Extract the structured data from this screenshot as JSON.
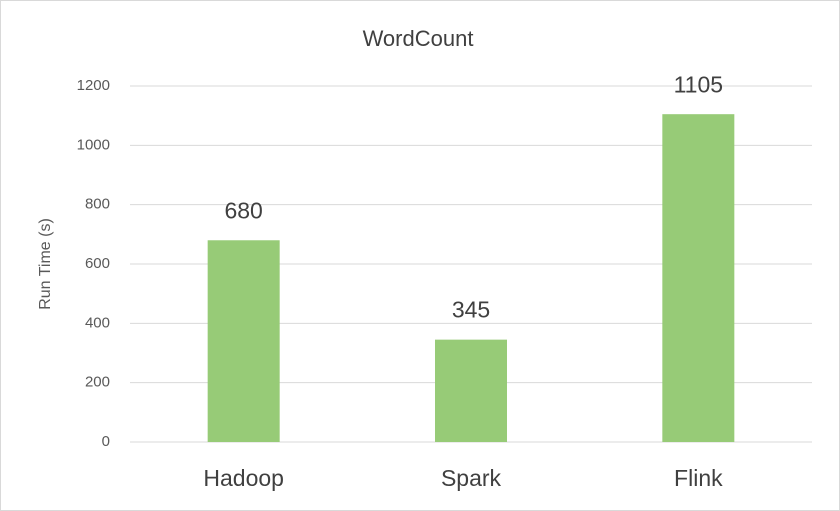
{
  "chart_data": {
    "type": "bar",
    "title": "WordCount",
    "y_label": "Run Time (s)",
    "categories": [
      "Hadoop",
      "Spark",
      "Flink"
    ],
    "values": [
      680,
      345,
      1105
    ],
    "color": "#97cb77",
    "ylim": [
      0,
      1200
    ],
    "yticks": [
      0,
      200,
      400,
      600,
      800,
      1000,
      1200
    ],
    "grid": true
  }
}
